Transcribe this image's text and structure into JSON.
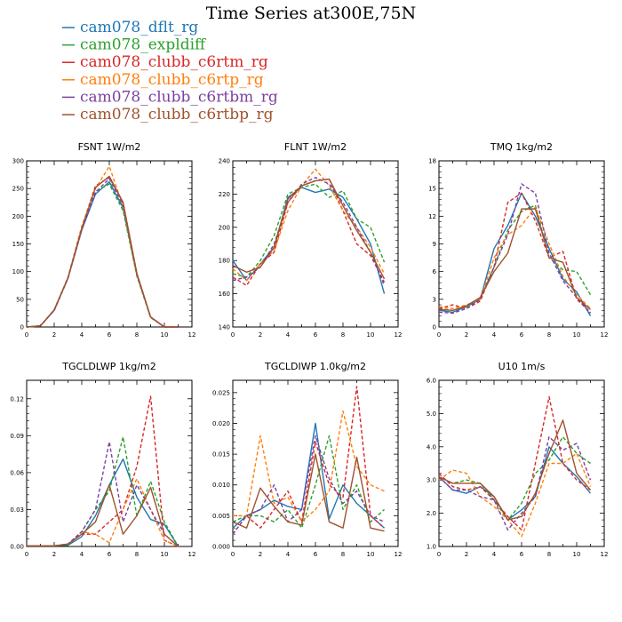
{
  "figure_title": "Time Series at300E,75N",
  "legend": [
    {
      "name": "cam078_dflt_rg",
      "color": "#1f77b4"
    },
    {
      "name": "cam078_expldiff",
      "color": "#2ca02c"
    },
    {
      "name": "cam078_clubb_c6rtm_rg",
      "color": "#d62728"
    },
    {
      "name": "cam078_clubb_c6rtp_rg",
      "color": "#ff7f0e"
    },
    {
      "name": "cam078_clubb_c6rtbm_rg",
      "color": "#7b3fa0"
    },
    {
      "name": "cam078_clubb_c6rtbp_rg",
      "color": "#a0522d"
    }
  ],
  "chart_data": [
    {
      "type": "line",
      "title": "FSNT   1W/m2",
      "x": [
        0,
        1,
        2,
        3,
        4,
        5,
        6,
        7,
        8,
        9,
        10,
        11
      ],
      "xlim": [
        0,
        12
      ],
      "xticks": [
        0,
        2,
        4,
        6,
        8,
        10,
        12
      ],
      "ylim": [
        0,
        300
      ],
      "yticks": [
        "0",
        "50",
        "100",
        "150",
        "200",
        "250",
        "300"
      ],
      "series": [
        {
          "values": [
            0,
            2,
            30,
            88,
            175,
            240,
            262,
            215,
            95,
            18,
            0,
            0
          ],
          "dash": false
        },
        {
          "values": [
            0,
            2,
            30,
            88,
            178,
            245,
            258,
            210,
            92,
            17,
            0,
            0
          ],
          "dash": true
        },
        {
          "values": [
            0,
            2,
            31,
            88,
            180,
            255,
            270,
            225,
            97,
            18,
            0,
            0
          ],
          "dash": true
        },
        {
          "values": [
            0,
            2,
            31,
            90,
            182,
            250,
            290,
            218,
            95,
            18,
            0,
            0
          ],
          "dash": true
        },
        {
          "values": [
            0,
            2,
            30,
            88,
            175,
            243,
            268,
            220,
            95,
            18,
            0,
            0
          ],
          "dash": true
        },
        {
          "values": [
            0,
            2,
            31,
            89,
            178,
            252,
            272,
            225,
            97,
            18,
            0,
            0
          ],
          "dash": false
        }
      ]
    },
    {
      "type": "line",
      "title": "FLNT   1W/m2",
      "x": [
        0,
        1,
        2,
        3,
        4,
        5,
        6,
        7,
        8,
        9,
        10,
        11
      ],
      "xlim": [
        0,
        12
      ],
      "xticks": [
        0,
        2,
        4,
        6,
        8,
        10,
        12
      ],
      "ylim": [
        140,
        240
      ],
      "yticks": [
        "140",
        "160",
        "180",
        "200",
        "220",
        "240"
      ],
      "series": [
        {
          "values": [
            180,
            168,
            178,
            188,
            218,
            224,
            221,
            223,
            218,
            205,
            190,
            160
          ],
          "dash": false
        },
        {
          "values": [
            172,
            170,
            180,
            195,
            220,
            224,
            226,
            218,
            222,
            205,
            200,
            179
          ],
          "dash": true
        },
        {
          "values": [
            170,
            165,
            178,
            185,
            215,
            225,
            228,
            229,
            210,
            190,
            183,
            167
          ],
          "dash": true
        },
        {
          "values": [
            175,
            168,
            178,
            186,
            210,
            225,
            235,
            225,
            210,
            200,
            188,
            172
          ],
          "dash": true
        },
        {
          "values": [
            168,
            170,
            176,
            190,
            215,
            226,
            230,
            226,
            215,
            200,
            185,
            165
          ],
          "dash": true
        },
        {
          "values": [
            177,
            173,
            176,
            188,
            217,
            225,
            228,
            229,
            213,
            198,
            185,
            169
          ],
          "dash": false
        }
      ]
    },
    {
      "type": "line",
      "title": "TMQ   1kg/m2",
      "x": [
        0,
        1,
        2,
        3,
        4,
        5,
        6,
        7,
        8,
        9,
        10,
        11
      ],
      "xlim": [
        0,
        12
      ],
      "xticks": [
        0,
        2,
        4,
        6,
        8,
        10,
        12
      ],
      "ylim": [
        0,
        18
      ],
      "yticks": [
        "0",
        "3",
        "6",
        "9",
        "12",
        "15",
        "18"
      ],
      "series": [
        {
          "values": [
            1.8,
            1.6,
            2.2,
            3.0,
            8.5,
            11.0,
            14.5,
            12.0,
            8.5,
            5.2,
            3.8,
            1.2
          ],
          "dash": false
        },
        {
          "values": [
            2.0,
            1.8,
            2.2,
            3.2,
            6.5,
            10.5,
            12.5,
            13.2,
            7.5,
            6.2,
            6.0,
            3.5
          ],
          "dash": true
        },
        {
          "values": [
            2.0,
            2.4,
            2.0,
            2.8,
            6.5,
            13.5,
            14.5,
            11.5,
            7.5,
            8.2,
            3.0,
            1.6
          ],
          "dash": true
        },
        {
          "values": [
            2.2,
            2.0,
            2.4,
            3.0,
            7.5,
            10.0,
            11.0,
            13.0,
            9.0,
            5.5,
            3.5,
            2.0
          ],
          "dash": true
        },
        {
          "values": [
            1.6,
            1.5,
            2.0,
            3.0,
            6.5,
            10.0,
            15.5,
            14.5,
            8.0,
            5.0,
            3.2,
            1.5
          ],
          "dash": true
        },
        {
          "values": [
            1.9,
            1.8,
            2.3,
            3.2,
            6.0,
            8.0,
            12.8,
            12.8,
            7.5,
            7.0,
            3.2,
            1.9
          ],
          "dash": false
        }
      ]
    },
    {
      "type": "line",
      "title": "TGCLDLWP   1kg/m2",
      "x": [
        0,
        1,
        2,
        3,
        4,
        5,
        6,
        7,
        8,
        9,
        10,
        11
      ],
      "xlim": [
        0,
        12
      ],
      "xticks": [
        0,
        2,
        4,
        6,
        8,
        10,
        12
      ],
      "ylim": [
        0,
        0.135
      ],
      "yticks": [
        "0.00",
        "0.03",
        "0.06",
        "0.09",
        "0.12"
      ],
      "ytick_values": [
        0,
        0.03,
        0.06,
        0.09,
        0.12
      ],
      "series": [
        {
          "values": [
            0.0005,
            0.0005,
            0.0005,
            0.001,
            0.008,
            0.025,
            0.05,
            0.071,
            0.04,
            0.022,
            0.018,
            0.0
          ],
          "dash": false
        },
        {
          "values": [
            0.0005,
            0.0005,
            0.0005,
            0.001,
            0.012,
            0.03,
            0.045,
            0.089,
            0.025,
            0.053,
            0.02,
            0.0
          ],
          "dash": true
        },
        {
          "values": [
            0.0005,
            0.0005,
            0.0005,
            0.002,
            0.01,
            0.01,
            0.02,
            0.03,
            0.065,
            0.122,
            0.005,
            0.0
          ],
          "dash": true
        },
        {
          "values": [
            0.0005,
            0.0005,
            0.0005,
            0.002,
            0.012,
            0.01,
            0.003,
            0.03,
            0.055,
            0.03,
            0.005,
            0.0
          ],
          "dash": true
        },
        {
          "values": [
            0.0005,
            0.0005,
            0.0005,
            0.002,
            0.012,
            0.03,
            0.085,
            0.02,
            0.05,
            0.03,
            0.01,
            0.0
          ],
          "dash": true
        },
        {
          "values": [
            0.0005,
            0.0005,
            0.0005,
            0.002,
            0.01,
            0.02,
            0.05,
            0.01,
            0.025,
            0.048,
            0.01,
            0.0
          ],
          "dash": false
        }
      ]
    },
    {
      "type": "line",
      "title": "TGCLDIWP   1.0kg/m2",
      "x": [
        0,
        1,
        2,
        3,
        4,
        5,
        6,
        7,
        8,
        9,
        10,
        11
      ],
      "xlim": [
        0,
        12
      ],
      "xticks": [
        0,
        2,
        4,
        6,
        8,
        10,
        12
      ],
      "ylim": [
        0,
        0.027
      ],
      "yticks": [
        "0.000",
        "0.005",
        "0.010",
        "0.015",
        "0.020",
        "0.025"
      ],
      "ytick_values": [
        0,
        0.005,
        0.01,
        0.015,
        0.02,
        0.025
      ],
      "series": [
        {
          "values": [
            0.003,
            0.005,
            0.006,
            0.0075,
            0.0065,
            0.006,
            0.02,
            0.0045,
            0.01,
            0.007,
            0.005,
            0.003
          ],
          "dash": false
        },
        {
          "values": [
            0.004,
            0.005,
            0.005,
            0.004,
            0.006,
            0.003,
            0.01,
            0.018,
            0.006,
            0.01,
            0.004,
            0.006
          ],
          "dash": true
        },
        {
          "values": [
            0.002,
            0.005,
            0.003,
            0.006,
            0.009,
            0.004,
            0.017,
            0.01,
            0.008,
            0.026,
            0.005,
            0.003
          ],
          "dash": true
        },
        {
          "values": [
            0.005,
            0.005,
            0.018,
            0.007,
            0.008,
            0.004,
            0.006,
            0.009,
            0.022,
            0.013,
            0.01,
            0.009
          ],
          "dash": true
        },
        {
          "values": [
            0.002,
            0.005,
            0.006,
            0.01,
            0.004,
            0.006,
            0.018,
            0.011,
            0.007,
            0.009,
            0.005,
            0.004
          ],
          "dash": true
        },
        {
          "values": [
            0.004,
            0.003,
            0.0095,
            0.0065,
            0.004,
            0.0035,
            0.015,
            0.004,
            0.003,
            0.0145,
            0.003,
            0.0025
          ],
          "dash": false
        }
      ]
    },
    {
      "type": "line",
      "title": "U10   1m/s",
      "x": [
        0,
        1,
        2,
        3,
        4,
        5,
        6,
        7,
        8,
        9,
        10,
        11
      ],
      "xlim": [
        0,
        12
      ],
      "xticks": [
        0,
        2,
        4,
        6,
        8,
        10,
        12
      ],
      "ylim": [
        1.0,
        6.0
      ],
      "yticks": [
        "1.0",
        "2.0",
        "3.0",
        "4.0",
        "5.0",
        "6.0"
      ],
      "ytick_values": [
        1,
        2,
        3,
        4,
        5,
        6
      ],
      "series": [
        {
          "values": [
            3.1,
            2.7,
            2.6,
            2.8,
            2.5,
            1.8,
            2.1,
            2.5,
            4.0,
            3.5,
            3.1,
            2.6
          ],
          "dash": false
        },
        {
          "values": [
            3.1,
            2.9,
            3.0,
            2.9,
            2.4,
            1.8,
            2.3,
            3.2,
            3.6,
            4.3,
            3.8,
            3.5
          ],
          "dash": true
        },
        {
          "values": [
            3.2,
            2.8,
            2.7,
            2.8,
            2.4,
            1.9,
            1.5,
            3.5,
            5.5,
            3.5,
            3.0,
            2.7
          ],
          "dash": true
        },
        {
          "values": [
            3.0,
            3.3,
            3.2,
            2.5,
            2.2,
            1.8,
            1.3,
            2.3,
            3.5,
            3.5,
            3.8,
            2.8
          ],
          "dash": true
        },
        {
          "values": [
            3.1,
            2.7,
            2.7,
            2.5,
            2.4,
            1.5,
            2.0,
            2.5,
            4.3,
            3.9,
            4.1,
            3.0
          ],
          "dash": true
        },
        {
          "values": [
            3.1,
            2.9,
            2.9,
            2.9,
            2.5,
            1.8,
            1.9,
            2.6,
            3.8,
            4.8,
            3.2,
            2.7
          ],
          "dash": false
        }
      ]
    }
  ]
}
